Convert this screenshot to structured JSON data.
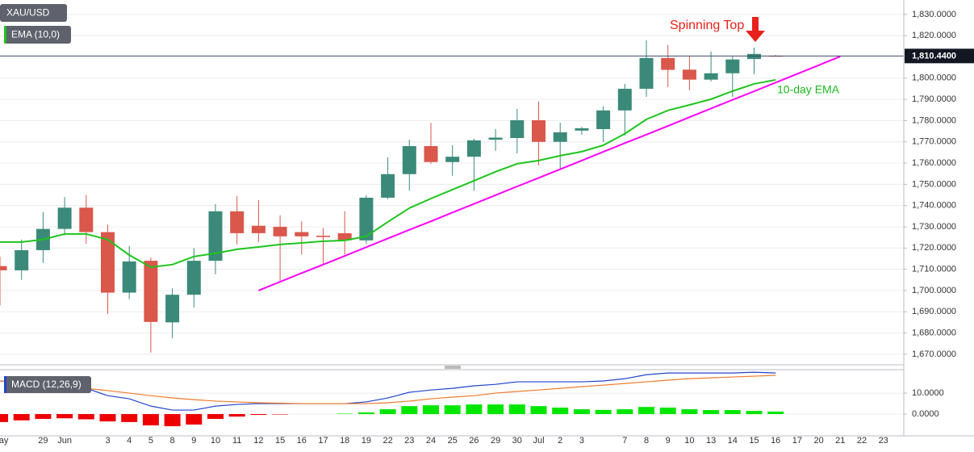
{
  "chart_data": [
    {
      "type": "candlestick",
      "symbol": "XAU/USD",
      "categories": [
        "May",
        null,
        "29",
        "Jun",
        null,
        "3",
        "4",
        "5",
        "8",
        "9",
        "10",
        "11",
        "12",
        "15",
        "16",
        "17",
        "18",
        "19",
        "22",
        "23",
        "24",
        "25",
        "26",
        "29",
        "30",
        "Jul",
        "2",
        "3",
        null,
        "7",
        "8",
        "9",
        "10",
        "13",
        "14",
        "15",
        "16",
        "17",
        "20",
        "21",
        "22",
        "23"
      ],
      "open": [
        1711.5,
        1709.5,
        1719,
        1729,
        1739,
        1727.5,
        1699,
        1714,
        1685,
        1698,
        1714,
        1737.3,
        1730.5,
        1730,
        1727.5,
        1725.8,
        1727,
        1723.6,
        1743.7,
        1754.8,
        1768,
        1760.5,
        1763,
        1771,
        1771.8,
        1780.2,
        1770,
        1775.3,
        1776,
        1784.8,
        1795,
        1809.5,
        1804,
        1799.3,
        1802.3,
        1809,
        1810.5,
        null,
        null,
        null,
        null,
        null
      ],
      "high": [
        1716,
        1724,
        1737,
        1744,
        1745,
        1731,
        1721,
        1715.6,
        1701,
        1720,
        1740.7,
        1744.5,
        1742.6,
        1735.4,
        1732.6,
        1729.5,
        1737.3,
        1744.9,
        1762.7,
        1771,
        1779,
        1768.4,
        1771.5,
        1776,
        1785.5,
        1789,
        1779,
        1777,
        1786.7,
        1797.3,
        1817.8,
        1815.6,
        1810.2,
        1812.5,
        1810.2,
        1814.4,
        1810.9,
        null,
        null,
        null,
        null,
        null
      ],
      "low": [
        1693,
        1705,
        1713,
        1726,
        1722,
        1689,
        1696,
        1670.8,
        1677.6,
        1692,
        1707.6,
        1721.7,
        1722.8,
        1703.8,
        1717,
        1712.6,
        1717,
        1722,
        1743,
        1747,
        1759.7,
        1754,
        1747,
        1765.8,
        1764.6,
        1759,
        1757,
        1773.4,
        1770,
        1773,
        1791.2,
        1795.8,
        1794.3,
        1798.5,
        1791.2,
        1801.9,
        1810.2,
        null,
        null,
        null,
        null,
        null
      ],
      "close": [
        1709.5,
        1719,
        1729,
        1739,
        1727.5,
        1699,
        1713.7,
        1685.2,
        1698,
        1714,
        1737.3,
        1727,
        1727,
        1725.5,
        1725.5,
        1725.2,
        1723.6,
        1743.7,
        1754.8,
        1768,
        1760.5,
        1763,
        1770.7,
        1772,
        1780.2,
        1770,
        1774.5,
        1776.4,
        1784.8,
        1795,
        1809.5,
        1803.9,
        1799.3,
        1802.3,
        1808.8,
        1811.4,
        1810.44,
        null,
        null,
        null,
        null,
        null
      ],
      "up_color": "#3b8a79",
      "down_color": "#d9574b",
      "series": [
        {
          "name": "EMA (10,0)",
          "color": "#1ec41e",
          "values": [
            1722.8,
            1722.8,
            1724,
            1726.6,
            1726.6,
            1724,
            1716.7,
            1711,
            1712.2,
            1716,
            1717.5,
            1719.4,
            1720.5,
            1721.7,
            1722.4,
            1723.2,
            1723.6,
            1725.5,
            1732.3,
            1738.8,
            1743.3,
            1747.5,
            1751.7,
            1755.9,
            1759.7,
            1761.2,
            1763.5,
            1765.4,
            1768.4,
            1773.8,
            1780.6,
            1784.8,
            1787.4,
            1790.1,
            1793.9,
            1797.3,
            1799.2,
            null,
            null,
            null,
            null,
            null
          ]
        },
        {
          "color": "#ff00ff",
          "values": [
            null,
            null,
            null,
            null,
            null,
            null,
            null,
            null,
            null,
            null,
            null,
            null,
            1700,
            1704.1,
            1708.2,
            1712.2,
            1716.3,
            1720.4,
            1724.5,
            1728.6,
            1732.6,
            1736.7,
            1740.8,
            1744.9,
            1749,
            1753,
            1757.1,
            1761.2,
            1765.3,
            1769.4,
            1773.4,
            1777.5,
            1781.6,
            1785.7,
            1789.8,
            1793.8,
            1797.9,
            1802,
            1806.1,
            1810.2,
            null,
            null
          ]
        }
      ],
      "last_price": {
        "value": 1810.44,
        "label": "1,810.4400"
      },
      "annotations": [
        "Spinning Top",
        "10-day EMA"
      ],
      "ylim": [
        1665,
        1836.8
      ],
      "yticks": [
        {
          "value": 1670,
          "label": "1,670.0000"
        },
        {
          "value": 1680,
          "label": "1,680.0000"
        },
        {
          "value": 1690,
          "label": "1,690.0000"
        },
        {
          "value": 1700,
          "label": "1,700.0000"
        },
        {
          "value": 1710,
          "label": "1,710.0000"
        },
        {
          "value": 1720,
          "label": "1,720.0000"
        },
        {
          "value": 1730,
          "label": "1,730.0000"
        },
        {
          "value": 1740,
          "label": "1,740.0000"
        },
        {
          "value": 1750,
          "label": "1,750.0000"
        },
        {
          "value": 1760,
          "label": "1,760.0000"
        },
        {
          "value": 1770,
          "label": "1,770.0000"
        },
        {
          "value": 1780,
          "label": "1,780.0000"
        },
        {
          "value": 1790,
          "label": "1,790.0000"
        },
        {
          "value": 1800,
          "label": "1,800.0000"
        },
        {
          "value": 1820,
          "label": "1,820.0000"
        },
        {
          "value": 1830,
          "label": "1,830.0000"
        }
      ],
      "grid": true
    },
    {
      "type": "macd",
      "title": "MACD (12,26,9)",
      "series": [
        {
          "color": "#2244cc",
          "values": [
            15.8,
            15,
            13.5,
            13.5,
            12.3,
            8.8,
            7.3,
            3.8,
            1.9,
            1.9,
            3.8,
            4.6,
            5,
            5,
            5,
            5,
            5,
            5.8,
            7.7,
            10.4,
            11.5,
            12.3,
            13.5,
            14.2,
            15.4,
            15.4,
            15.4,
            15.4,
            15.8,
            16.9,
            18.8,
            19.6,
            19.6,
            19.6,
            19.6,
            20,
            19.6,
            null,
            null,
            null,
            null,
            null
          ]
        },
        {
          "color": "#f07b2a",
          "values": [
            15.8,
            15.4,
            14.6,
            13.5,
            12.3,
            11.2,
            10,
            8.8,
            7.7,
            6.9,
            6.2,
            5.8,
            5.4,
            5.2,
            5,
            5,
            5,
            5,
            5.4,
            6.2,
            7.3,
            8.1,
            8.8,
            10,
            10.8,
            11.5,
            12.3,
            13.1,
            13.8,
            14.6,
            15.4,
            16.2,
            16.9,
            17.3,
            17.7,
            18.1,
            18.5,
            null,
            null,
            null,
            null,
            null
          ]
        }
      ],
      "histogram": {
        "up_color": "#00e600",
        "down_color": "#ee0000",
        "values": [
          -3.8,
          -3,
          -2.3,
          -2,
          -2.5,
          -3.5,
          -3.8,
          -5.4,
          -5.8,
          -5,
          -2.3,
          -1.2,
          -0.4,
          -0.2,
          0,
          0,
          0.2,
          0.8,
          2.3,
          3.8,
          4.2,
          4.2,
          4.6,
          4.6,
          4.6,
          3.8,
          3.1,
          2.3,
          2,
          2.3,
          3.4,
          3.1,
          2.3,
          1.9,
          1.9,
          1.5,
          1.2,
          null,
          null,
          null,
          null,
          null
        ]
      },
      "ylim": [
        -10.4,
        21.2
      ],
      "yticks": [
        {
          "value": 0,
          "label": "0.0000"
        },
        {
          "value": 10,
          "label": "10.0000"
        }
      ]
    }
  ]
}
